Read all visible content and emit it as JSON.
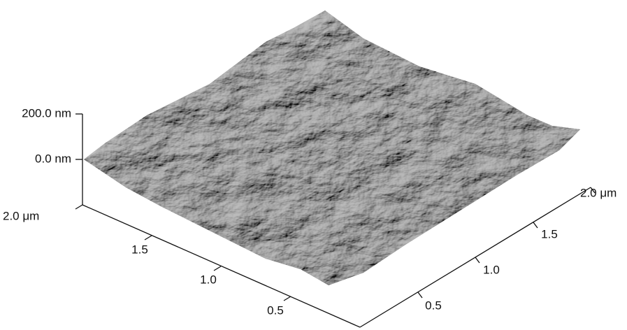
{
  "z_axis": {
    "ticks": [
      "200.0 nm",
      "0.0 nm"
    ]
  },
  "x_axis": {
    "ticks": [
      "2.0 μm",
      "1.5",
      "1.0",
      "0.5"
    ]
  },
  "y_axis": {
    "ticks": [
      "0.5",
      "1.0",
      "1.5",
      "2.0 μm"
    ]
  }
}
